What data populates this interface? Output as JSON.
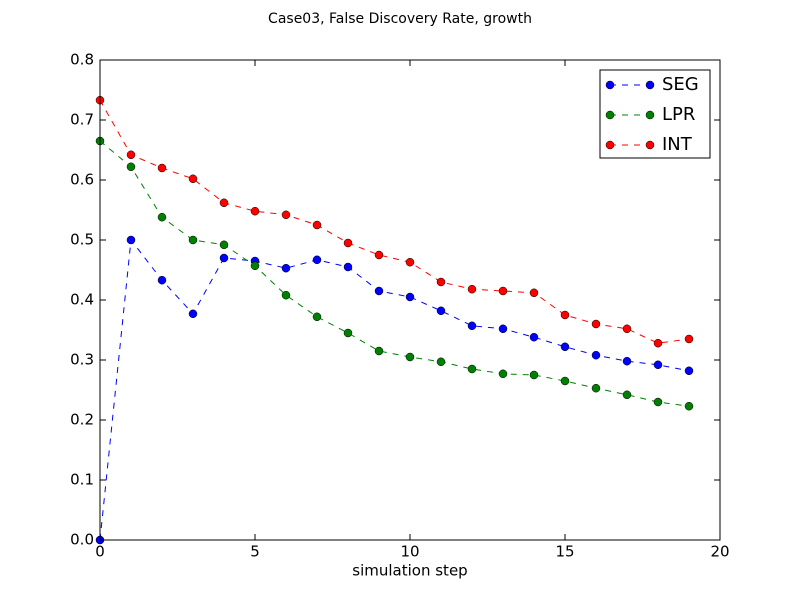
{
  "chart_data": {
    "type": "line",
    "title": "Case03, False Discovery Rate, growth",
    "xlabel": "simulation step",
    "x": [
      0,
      1,
      2,
      3,
      4,
      5,
      6,
      7,
      8,
      9,
      10,
      11,
      12,
      13,
      14,
      15,
      16,
      17,
      18,
      19
    ],
    "series": [
      {
        "name": "SEG",
        "color": "#0000ff",
        "values": [
          0.0,
          0.5,
          0.433,
          0.377,
          0.47,
          0.465,
          0.453,
          0.467,
          0.455,
          0.415,
          0.405,
          0.382,
          0.357,
          0.352,
          0.338,
          0.322,
          0.308,
          0.298,
          0.292,
          0.282
        ]
      },
      {
        "name": "LPR",
        "color": "#008000",
        "values": [
          0.665,
          0.622,
          0.538,
          0.5,
          0.492,
          0.457,
          0.408,
          0.372,
          0.345,
          0.315,
          0.305,
          0.297,
          0.285,
          0.277,
          0.275,
          0.265,
          0.253,
          0.242,
          0.23,
          0.223
        ]
      },
      {
        "name": "INT",
        "color": "#ff0000",
        "values": [
          0.733,
          0.642,
          0.62,
          0.602,
          0.562,
          0.548,
          0.542,
          0.525,
          0.495,
          0.475,
          0.463,
          0.43,
          0.418,
          0.415,
          0.412,
          0.375,
          0.36,
          0.352,
          0.328,
          0.335
        ]
      }
    ],
    "xlim": [
      0,
      20
    ],
    "xticks": [
      0,
      5,
      10,
      15,
      20
    ],
    "ylim": [
      0,
      0.8
    ],
    "yticks": [
      {
        "value": 0,
        "label": "0.0"
      },
      0.1,
      0.2,
      0.3,
      0.4,
      0.5,
      0.6,
      0.7,
      0.8
    ],
    "legend": "upper right",
    "grid": false
  }
}
